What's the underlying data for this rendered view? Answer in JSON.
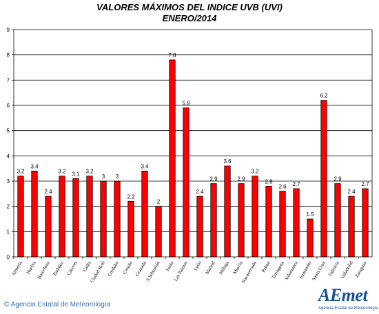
{
  "chart_data": {
    "type": "bar",
    "title": "VALORES MÁXIMOS DEL INDICE UVB (UVI)",
    "subtitle": "ENERO/2014",
    "xlabel": "",
    "ylabel": "",
    "ylim": [
      0,
      9
    ],
    "yticks": [
      0,
      1,
      2,
      3,
      4,
      5,
      6,
      7,
      8,
      9
    ],
    "grid": true,
    "bar_color": "#ff0000",
    "categories": [
      "Almería",
      "Huelva",
      "Barcelona",
      "Badajoz",
      "Cáceres",
      "Cádiz",
      "Ciudad Real",
      "Córdoba",
      "Coruña",
      "Granada",
      "S.Sebastián",
      "Izaña",
      "Las Palmas",
      "León",
      "Madrid",
      "Málaga",
      "Murcia",
      "Navacerrada",
      "Palma",
      "Tarragona",
      "Salamanca",
      "Santander",
      "Santa Cruz",
      "Valencia",
      "Valladolid",
      "Zaragoza"
    ],
    "values": [
      3.2,
      3.4,
      2.4,
      3.2,
      3.1,
      3.2,
      3,
      3,
      2.2,
      3.4,
      2,
      7.8,
      5.9,
      2.4,
      2.9,
      3.6,
      2.9,
      3.2,
      2.8,
      2.6,
      2.7,
      1.5,
      6.2,
      2.9,
      2.4,
      2.7
    ]
  },
  "footer": {
    "copyright_symbol": "©",
    "agency": "Agencia Estatal de Meteorología"
  },
  "logo": {
    "text": "AEmet",
    "subtitle": "Agencia Estatal de Meteorología"
  }
}
